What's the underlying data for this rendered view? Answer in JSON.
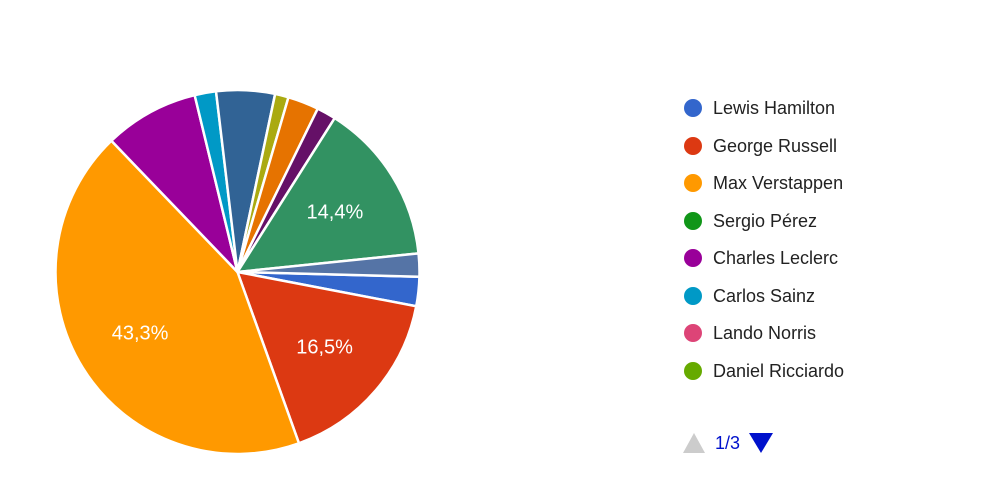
{
  "chart_data": {
    "type": "pie",
    "start_angle_deg": 91.5,
    "slice_label_color": "#ffffff",
    "slice_border_color": "#ffffff",
    "slices": [
      {
        "name": "Lewis Hamilton",
        "color": "#3366cc",
        "percent": 2.6
      },
      {
        "name": "George Russell",
        "color": "#dc3912",
        "percent": 16.5,
        "label": "16,5%"
      },
      {
        "name": "Max Verstappen",
        "color": "#ff9900",
        "percent": 43.3,
        "label": "43,3%"
      },
      {
        "name": "Charles Leclerc",
        "color": "#990099",
        "percent": 8.4
      },
      {
        "name": "Carlos Sainz",
        "color": "#0099c6",
        "percent": 1.9
      },
      {
        "color": "#316395",
        "percent": 5.2
      },
      {
        "color": "#aaaa11",
        "percent": 1.2
      },
      {
        "color": "#e67300",
        "percent": 2.75
      },
      {
        "color": "#651067",
        "percent": 1.7
      },
      {
        "color": "#329262",
        "percent": 14.4,
        "label": "14,4%"
      },
      {
        "color": "#5574a6",
        "percent": 2.05
      }
    ],
    "legend": {
      "position": "right",
      "items": [
        {
          "name": "Lewis Hamilton",
          "color": "#3366cc"
        },
        {
          "name": "George Russell",
          "color": "#dc3912"
        },
        {
          "name": "Max Verstappen",
          "color": "#ff9900"
        },
        {
          "name": "Sergio Pérez",
          "color": "#109618"
        },
        {
          "name": "Charles Leclerc",
          "color": "#990099"
        },
        {
          "name": "Carlos Sainz",
          "color": "#0099c6"
        },
        {
          "name": "Lando Norris",
          "color": "#dd4477"
        },
        {
          "name": "Daniel Ricciardo",
          "color": "#66aa00"
        }
      ],
      "pagination": {
        "label": "1/3",
        "prev_enabled": false,
        "next_enabled": true,
        "disabled_color": "#cccccc",
        "active_color": "#0011cc",
        "text_color": "#0011cc"
      }
    }
  }
}
